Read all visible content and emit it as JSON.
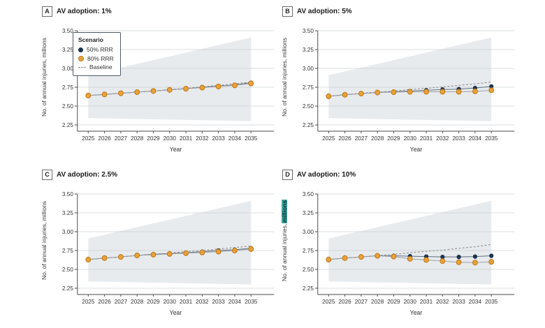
{
  "colors": {
    "navy": "#1b3450",
    "orange": "#e9a23b",
    "orange_stroke": "#bf7a15",
    "baseline": "#8f8f8f",
    "band": "#e8ebee",
    "gridline": "#cdd1d5",
    "axis": "#4a4a4a",
    "tick_text": "#333333",
    "line50": "#5f6d79",
    "line80": "#9aa1a7",
    "highlight": "#41a699"
  },
  "legend": {
    "title": "Scenario",
    "items": [
      {
        "label": "50% RRR",
        "marker": "navy-dot"
      },
      {
        "label": "80% RRR",
        "marker": "orange-dot"
      },
      {
        "label": "Baseline",
        "marker": "dashed-line"
      }
    ]
  },
  "chart_data": [
    {
      "type": "line",
      "panel_label": "A",
      "title": "AV adoption: 1%",
      "ylabel": "No. of annual injuries, millions",
      "ylabel_highlight": "",
      "xlabel": "Year",
      "x": [
        2025,
        2026,
        2027,
        2028,
        2029,
        2030,
        2031,
        2032,
        2033,
        2034,
        2035
      ],
      "yticks": [
        3.5,
        3.25,
        3.0,
        2.75,
        2.5,
        2.25
      ],
      "ylim": [
        2.17,
        3.5
      ],
      "grid": true,
      "band": {
        "upper": [
          2.91,
          3.41
        ],
        "lower": [
          2.34,
          2.3
        ]
      },
      "series": [
        {
          "name": "Baseline",
          "style": "dashed",
          "values": [
            2.64,
            2.655,
            2.67,
            2.685,
            2.7,
            2.72,
            2.735,
            2.755,
            2.775,
            2.795,
            2.82
          ]
        },
        {
          "name": "50% RRR",
          "style": "navy-points",
          "values": [
            2.64,
            2.655,
            2.67,
            2.685,
            2.7,
            2.715,
            2.73,
            2.75,
            2.765,
            2.78,
            2.81
          ]
        },
        {
          "name": "80% RRR",
          "style": "orange-points",
          "values": [
            2.64,
            2.655,
            2.67,
            2.685,
            2.7,
            2.715,
            2.73,
            2.745,
            2.76,
            2.775,
            2.8
          ]
        }
      ]
    },
    {
      "type": "line",
      "panel_label": "B",
      "title": "AV adoption: 5%",
      "ylabel": "No. of annual injuries, millions",
      "ylabel_highlight": "",
      "xlabel": "Year",
      "x": [
        2025,
        2026,
        2027,
        2028,
        2029,
        2030,
        2031,
        2032,
        2033,
        2034,
        2035
      ],
      "yticks": [
        3.5,
        3.25,
        3.0,
        2.75,
        2.5,
        2.25
      ],
      "ylim": [
        2.17,
        3.5
      ],
      "grid": true,
      "band": {
        "upper": [
          2.91,
          3.41
        ],
        "lower": [
          2.34,
          2.3
        ]
      },
      "series": [
        {
          "name": "Baseline",
          "style": "dashed",
          "values": [
            2.63,
            2.65,
            2.67,
            2.685,
            2.7,
            2.72,
            2.735,
            2.755,
            2.775,
            2.795,
            2.82
          ]
        },
        {
          "name": "50% RRR",
          "style": "navy-points",
          "values": [
            2.63,
            2.65,
            2.665,
            2.68,
            2.69,
            2.7,
            2.71,
            2.72,
            2.725,
            2.74,
            2.76
          ]
        },
        {
          "name": "80% RRR",
          "style": "orange-points",
          "values": [
            2.63,
            2.65,
            2.665,
            2.68,
            2.685,
            2.69,
            2.69,
            2.69,
            2.69,
            2.695,
            2.71
          ]
        }
      ]
    },
    {
      "type": "line",
      "panel_label": "C",
      "title": "AV adoption: 2.5%",
      "ylabel": "No. of annual injuries, millions",
      "ylabel_highlight": "",
      "xlabel": "Year",
      "x": [
        2025,
        2026,
        2027,
        2028,
        2029,
        2030,
        2031,
        2032,
        2033,
        2034,
        2035
      ],
      "yticks": [
        3.5,
        3.25,
        3.0,
        2.75,
        2.5,
        2.25
      ],
      "ylim": [
        2.17,
        3.5
      ],
      "grid": true,
      "band": {
        "upper": [
          2.91,
          3.41
        ],
        "lower": [
          2.34,
          2.3
        ]
      },
      "series": [
        {
          "name": "Baseline",
          "style": "dashed",
          "values": [
            2.63,
            2.65,
            2.665,
            2.685,
            2.7,
            2.715,
            2.735,
            2.75,
            2.77,
            2.79,
            2.81
          ]
        },
        {
          "name": "50% RRR",
          "style": "navy-points",
          "values": [
            2.63,
            2.65,
            2.665,
            2.685,
            2.7,
            2.71,
            2.72,
            2.735,
            2.75,
            2.76,
            2.78
          ]
        },
        {
          "name": "80% RRR",
          "style": "orange-points",
          "values": [
            2.63,
            2.65,
            2.665,
            2.685,
            2.695,
            2.705,
            2.715,
            2.725,
            2.735,
            2.75,
            2.77
          ]
        }
      ]
    },
    {
      "type": "line",
      "panel_label": "D",
      "title": "AV adoption: 10%",
      "ylabel": "No. of annual injuries, ",
      "ylabel_highlight": "millions",
      "xlabel": "Year",
      "x": [
        2025,
        2026,
        2027,
        2028,
        2029,
        2030,
        2031,
        2032,
        2033,
        2034,
        2035
      ],
      "yticks": [
        3.5,
        3.25,
        3.0,
        2.75,
        2.5,
        2.25
      ],
      "ylim": [
        2.17,
        3.5
      ],
      "grid": true,
      "band": {
        "upper": [
          2.91,
          3.41
        ],
        "lower": [
          2.34,
          2.3
        ]
      },
      "series": [
        {
          "name": "Baseline",
          "style": "dashed",
          "values": [
            2.63,
            2.65,
            2.665,
            2.685,
            2.7,
            2.72,
            2.74,
            2.755,
            2.78,
            2.8,
            2.83
          ]
        },
        {
          "name": "50% RRR",
          "style": "navy-points",
          "values": [
            2.63,
            2.65,
            2.665,
            2.68,
            2.68,
            2.675,
            2.67,
            2.665,
            2.665,
            2.67,
            2.68
          ]
        },
        {
          "name": "80% RRR",
          "style": "orange-points",
          "values": [
            2.63,
            2.65,
            2.665,
            2.68,
            2.67,
            2.64,
            2.625,
            2.61,
            2.595,
            2.59,
            2.6
          ]
        }
      ]
    }
  ]
}
